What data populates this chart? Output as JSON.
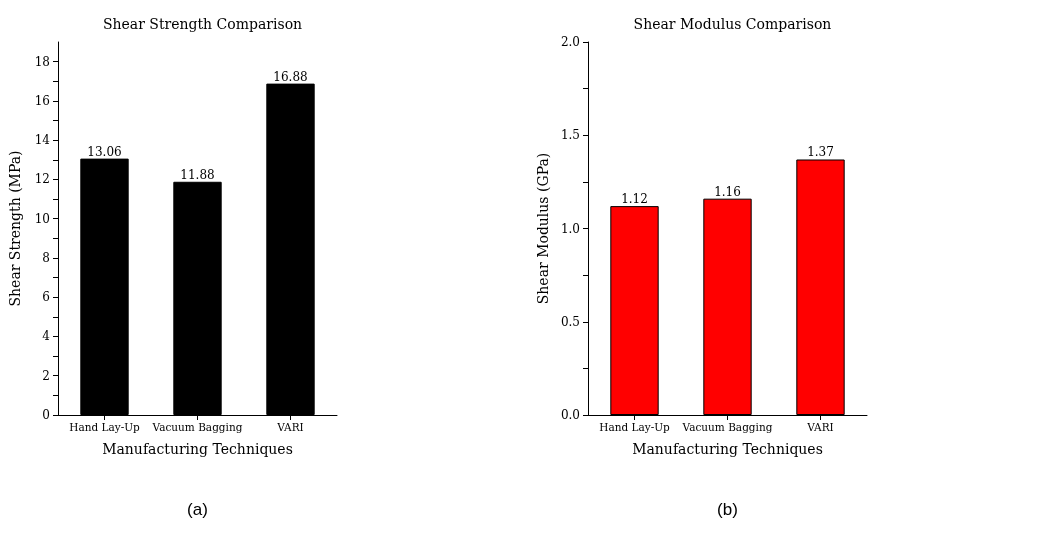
{
  "chart_data": [
    {
      "type": "bar",
      "title": "Shear Strength Comparison",
      "xlabel": "Manufacturing Techniques",
      "ylabel": "Shear Strength (MPa)",
      "categories": [
        "Hand Lay-Up",
        "Vacuum Bagging",
        "VARI"
      ],
      "values": [
        13.06,
        11.88,
        16.88
      ],
      "color": "#000000",
      "data_labels": true,
      "ylim": [
        0,
        19
      ],
      "yticks": [
        0,
        {
          "value": 1,
          "label": null
        },
        2,
        {
          "value": 3,
          "label": null
        },
        4,
        {
          "value": 5,
          "label": null
        },
        6,
        {
          "value": 7,
          "label": null
        },
        8,
        {
          "value": 9,
          "label": null
        },
        10,
        {
          "value": 11,
          "label": null
        },
        12,
        {
          "value": 13,
          "label": null
        },
        14,
        {
          "value": 15,
          "label": null
        },
        16,
        {
          "value": 17,
          "label": null
        },
        18
      ],
      "grid": false,
      "annotations": [
        "(a)"
      ]
    },
    {
      "type": "bar",
      "title": "Shear Modulus Comparison",
      "xlabel": "Manufacturing Techniques",
      "ylabel": "Shear Modulus (GPa)",
      "categories": [
        "Hand Lay-Up",
        "Vacuum Bagging",
        "VARI"
      ],
      "values": [
        1.12,
        1.16,
        1.37
      ],
      "color": "#ff0000",
      "data_labels": true,
      "ylim": [
        0,
        2
      ],
      "yticks": [
        {
          "value": 0,
          "label": "0.0"
        },
        {
          "value": 0.25,
          "label": null
        },
        {
          "value": 0.5,
          "label": "0.5"
        },
        {
          "value": 0.75,
          "label": null
        },
        {
          "value": 1,
          "label": "1.0"
        },
        {
          "value": 1.25,
          "label": null
        },
        {
          "value": 1.5,
          "label": "1.5"
        },
        {
          "value": 1.75,
          "label": null
        },
        {
          "value": 2,
          "label": "2.0"
        }
      ],
      "grid": false,
      "annotations": [
        "(b)"
      ]
    }
  ]
}
